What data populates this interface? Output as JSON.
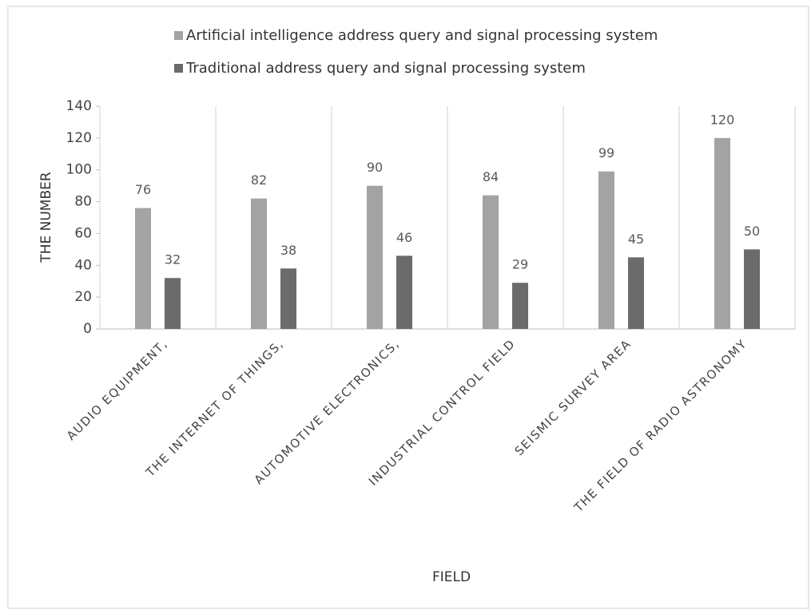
{
  "chart_data": {
    "type": "bar",
    "categories": [
      "AUDIO EQUIPMENT,",
      "THE INTERNET OF THINGS,",
      "AUTOMOTIVE ELECTRONICS,",
      "INDUSTRIAL CONTROL FIELD",
      "SEISMIC SURVEY AREA",
      "THE FIELD OF RADIO ASTRONOMY"
    ],
    "series": [
      {
        "name": "Artificial intelligence address query and signal processing system",
        "color": "#a3a3a3",
        "values": [
          76,
          82,
          90,
          84,
          99,
          120
        ]
      },
      {
        "name": "Traditional address query and signal processing system",
        "color": "#6b6b6b",
        "values": [
          32,
          38,
          46,
          29,
          45,
          50
        ]
      }
    ],
    "x_label": "FIELD",
    "y_label": "THE NUMBER",
    "ylim": [
      0,
      140
    ],
    "yticks": [
      0,
      20,
      40,
      60,
      80,
      100,
      120,
      140
    ],
    "grid": false,
    "legend": "top"
  }
}
